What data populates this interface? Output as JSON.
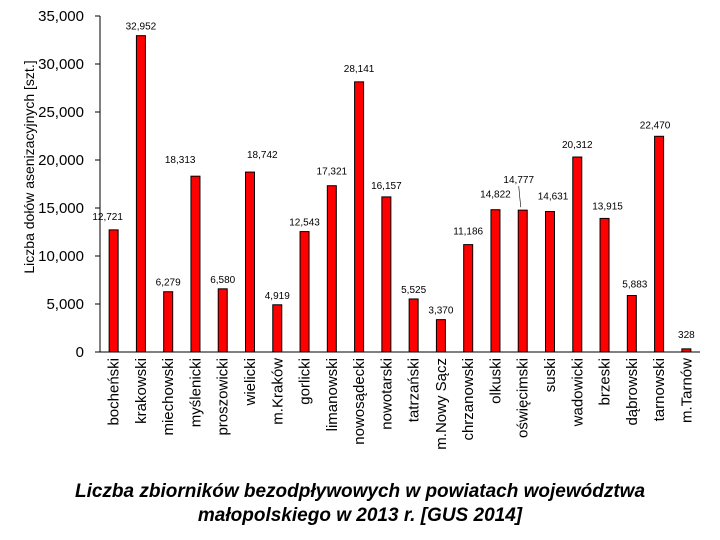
{
  "chart_data": {
    "type": "bar",
    "ylabel": "Liczba dołów asenizacyjnych [szt.]",
    "ylim": [
      0,
      35000
    ],
    "yticks": [
      0,
      5000,
      10000,
      15000,
      20000,
      25000,
      30000,
      35000
    ],
    "ytick_labels": [
      "0",
      "5,000",
      "10,000",
      "15,000",
      "20,000",
      "25,000",
      "30,000",
      "35,000"
    ],
    "categories": [
      "bocheński",
      "krakowski",
      "miechowski",
      "myślenicki",
      "proszowicki",
      "wielicki",
      "m.Kraków",
      "gorlicki",
      "limanowski",
      "nowosądecki",
      "nowotarski",
      "tatrzański",
      "m.Nowy Sącz",
      "chrzanowski",
      "olkuski",
      "oświęcimski",
      "suski",
      "wadowicki",
      "brzeski",
      "dąbrowski",
      "tarnowski",
      "m.Tarnów"
    ],
    "values": [
      12721,
      32952,
      6279,
      18313,
      6580,
      18742,
      4919,
      12543,
      17321,
      28141,
      16157,
      5525,
      3370,
      11186,
      14822,
      14777,
      14631,
      20312,
      13915,
      5883,
      22470,
      328
    ],
    "value_labels": [
      "12,721",
      "32,952",
      "6,279",
      "18,313",
      "6,580",
      "18,742",
      "4,919",
      "12,543",
      "17,321",
      "28,141",
      "16,157",
      "5,525",
      "3,370",
      "11,186",
      "14,822",
      "14,777",
      "14,631",
      "20,312",
      "13,915",
      "5,883",
      "22,470",
      "328"
    ],
    "bar_color": "#ff0000",
    "grid": false,
    "legend": "none"
  },
  "caption": {
    "line1": "Liczba zbiorników bezodpływowych w powiatach województwa",
    "line2": "małopolskiego w 2013 r.  [GUS 2014]"
  }
}
